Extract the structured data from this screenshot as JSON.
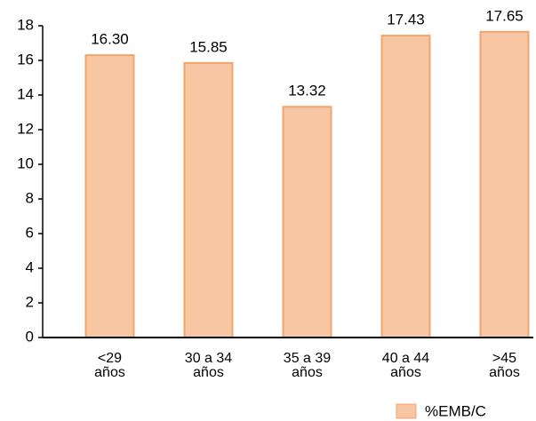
{
  "chart_data": {
    "type": "bar",
    "categories": [
      [
        "<29",
        "años"
      ],
      [
        "30 a 34",
        "años"
      ],
      [
        "35 a 39",
        "años"
      ],
      [
        "40 a 44",
        "años"
      ],
      [
        ">45",
        "años"
      ]
    ],
    "series": [
      {
        "name": "%EMB/C",
        "color": "#f8c6a2",
        "values": [
          16.3,
          15.85,
          13.32,
          17.43,
          17.65
        ],
        "value_labels": [
          "16.30",
          "15.85",
          "13.32",
          "17.43",
          "17.65"
        ]
      }
    ],
    "ylim": [
      0,
      18
    ],
    "yticks": [
      0,
      2,
      4,
      6,
      8,
      10,
      12,
      14,
      16,
      18
    ],
    "grid": false,
    "legend": "bottom-right"
  }
}
